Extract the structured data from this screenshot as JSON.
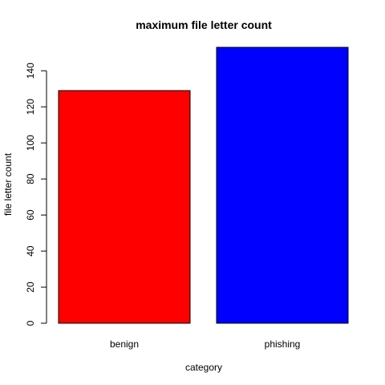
{
  "chart_data": {
    "type": "bar",
    "title": "maximum file letter count",
    "xlabel": "category",
    "ylabel": "file letter count",
    "categories": [
      "benign",
      "phishing"
    ],
    "values": [
      129,
      153
    ],
    "colors": [
      "#ff0000",
      "#0000ff"
    ],
    "ylim": [
      0,
      153
    ],
    "yticks": [
      0,
      20,
      40,
      60,
      80,
      100,
      120,
      140
    ],
    "grid": false,
    "legend": "none"
  }
}
